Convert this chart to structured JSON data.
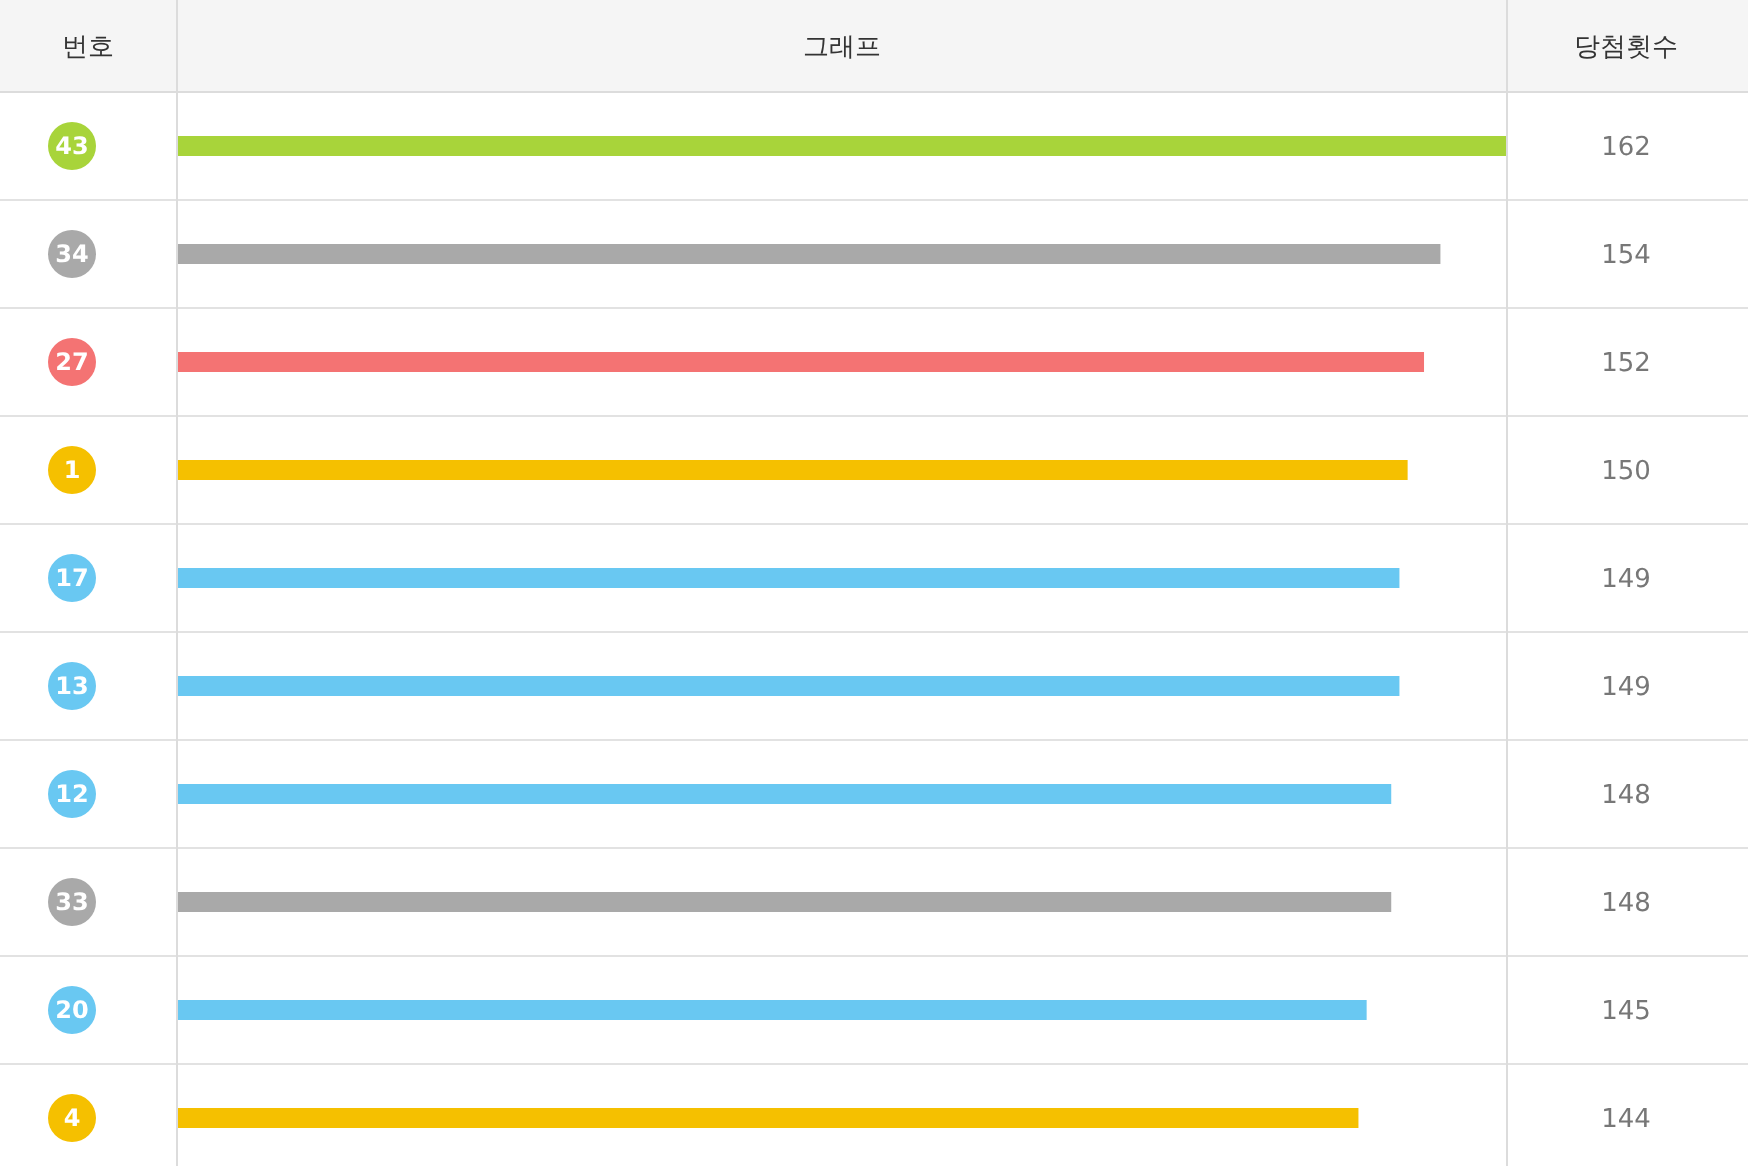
{
  "chart_data": {
    "type": "bar",
    "orientation": "horizontal",
    "ylabel": "번호",
    "xlabel": "그래프",
    "annotations": [
      "당첨횟수"
    ],
    "data_labels": true,
    "grid": "y",
    "categories": [
      "43",
      "34",
      "27",
      "1",
      "17",
      "13",
      "12",
      "33",
      "20",
      "4"
    ],
    "values": [
      162,
      154,
      152,
      150,
      149,
      149,
      148,
      148,
      145,
      144
    ],
    "colors": [
      "#a8d43a",
      "#a9a9a9",
      "#f47373",
      "#f5c000",
      "#69c8f2",
      "#69c8f2",
      "#69c8f2",
      "#a9a9a9",
      "#69c8f2",
      "#f5c000"
    ]
  }
}
